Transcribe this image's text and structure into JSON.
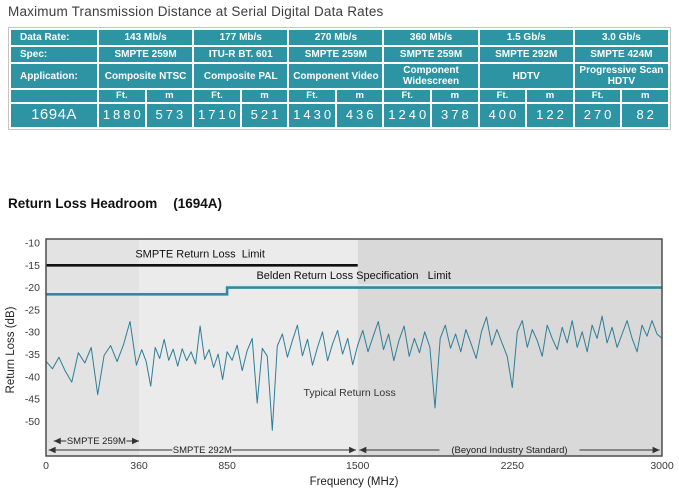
{
  "section_heading": {
    "title": "Return Loss Headroom",
    "suffix": "(1694A)"
  },
  "colors": {
    "table_teal": "#2d94a4",
    "table_text": "#ffffff",
    "trace": "#2e7e97",
    "belden_limit": "#33899f",
    "belden_highlight": "#d8edf3",
    "smpte_limit": "#111111",
    "axis_text": "#3a3a3a",
    "annotation": "#222222"
  },
  "chart_data": [
    {
      "type": "table",
      "title": "Maximum Transmission Distance at Serial Digital Data Rates",
      "row_labels": {
        "data_rate": "Data Rate:",
        "spec": "Spec:",
        "application": "Application:"
      },
      "unit_headers": {
        "ft": "Ft.",
        "m": "m"
      },
      "product": "1694A",
      "columns": [
        {
          "data_rate": "143 Mb/s",
          "spec": "SMPTE 259M",
          "application": "Composite NTSC",
          "ft": "1880",
          "m": "573"
        },
        {
          "data_rate": "177 Mb/s",
          "spec": "ITU-R BT. 601",
          "application": "Composite PAL",
          "ft": "1710",
          "m": "521"
        },
        {
          "data_rate": "270 Mb/s",
          "spec": "SMPTE 259M",
          "application": "Component Video",
          "ft": "1430",
          "m": "436"
        },
        {
          "data_rate": "360 Mb/s",
          "spec": "SMPTE 259M",
          "application": "Component Widescreen",
          "ft": "1240",
          "m": "378"
        },
        {
          "data_rate": "1.5 Gb/s",
          "spec": "SMPTE 292M",
          "application": "HDTV",
          "ft": "400",
          "m": "122"
        },
        {
          "data_rate": "3.0 Gb/s",
          "spec": "SMPTE 424M",
          "application": "Progressive Scan HDTV",
          "ft": "270",
          "m": "82"
        }
      ]
    },
    {
      "type": "line",
      "title": "Return Loss Headroom (1694A)",
      "xlabel": "Frequency (MHz)",
      "ylabel": "Return Loss (dB)",
      "xlim": [
        0,
        3000
      ],
      "ylim": [
        -50,
        -10
      ],
      "x_ticks": [
        0,
        360,
        850,
        1500,
        2250,
        3000
      ],
      "y_ticks": [
        -10,
        -15,
        -20,
        -25,
        -30,
        -35,
        -40,
        -45,
        -50
      ],
      "grid": false,
      "legend": "none",
      "bands": [
        {
          "x_range": [
            0,
            360
          ],
          "color": "#e3e3e3"
        },
        {
          "x_range": [
            360,
            1500
          ],
          "color": "#ebebeb"
        },
        {
          "x_range": [
            1500,
            3000
          ],
          "color": "#d9d9d9"
        }
      ],
      "layout": {
        "x_anchor_fractions": [
          [
            0,
            0
          ],
          [
            360,
            0.151
          ],
          [
            850,
            0.294
          ],
          [
            1500,
            0.506
          ],
          [
            2250,
            0.757
          ],
          [
            3000,
            1
          ]
        ]
      },
      "series": [
        {
          "name": "smpte-limit",
          "label": "SMPTE Return Loss  Limit",
          "value_db": -15,
          "points": [
            [
              0,
              -15
            ],
            [
              1500,
              -15
            ]
          ],
          "label_pos": {
            "x": 700,
            "db": -13.2
          }
        },
        {
          "name": "belden-limit",
          "label": "Belden Return Loss Specification   Limit",
          "points": [
            [
              0,
              -21.5
            ],
            [
              850,
              -21.5
            ],
            [
              850,
              -20
            ],
            [
              3000,
              -20
            ]
          ],
          "label_pos": {
            "x": 1480,
            "db": -18.1
          }
        },
        {
          "name": "typical-return-loss",
          "label": "Typical Return Loss",
          "label_pos": {
            "x": 1460,
            "db": -44.3
          },
          "points": [
            [
              0,
              -36.5
            ],
            [
              25,
              -38.2
            ],
            [
              50,
              -35.6
            ],
            [
              75,
              -38.8
            ],
            [
              100,
              -41.2
            ],
            [
              125,
              -34.6
            ],
            [
              150,
              -36.9
            ],
            [
              175,
              -33.4
            ],
            [
              200,
              -44.0
            ],
            [
              225,
              -35.2
            ],
            [
              250,
              -33.0
            ],
            [
              275,
              -36.6
            ],
            [
              300,
              -32.8
            ],
            [
              325,
              -27.6
            ],
            [
              350,
              -37.4
            ],
            [
              375,
              -33.9
            ],
            [
              400,
              -36.6
            ],
            [
              425,
              -42.1
            ],
            [
              450,
              -33.4
            ],
            [
              475,
              -35.9
            ],
            [
              500,
              -31.6
            ],
            [
              525,
              -36.3
            ],
            [
              550,
              -33.8
            ],
            [
              575,
              -37.6
            ],
            [
              600,
              -33.7
            ],
            [
              625,
              -36.4
            ],
            [
              650,
              -34.4
            ],
            [
              675,
              -37.1
            ],
            [
              700,
              -28.6
            ],
            [
              725,
              -36.1
            ],
            [
              750,
              -33.9
            ],
            [
              775,
              -37.9
            ],
            [
              800,
              -34.9
            ],
            [
              825,
              -40.6
            ],
            [
              850,
              -34.4
            ],
            [
              875,
              -36.3
            ],
            [
              900,
              -32.9
            ],
            [
              925,
              -38.6
            ],
            [
              950,
              -34.1
            ],
            [
              975,
              -31.4
            ],
            [
              1000,
              -45.9
            ],
            [
              1025,
              -33.6
            ],
            [
              1050,
              -35.4
            ],
            [
              1075,
              -52.0
            ],
            [
              1100,
              -33.1
            ],
            [
              1125,
              -30.4
            ],
            [
              1150,
              -35.6
            ],
            [
              1175,
              -31.9
            ],
            [
              1200,
              -28.4
            ],
            [
              1225,
              -35.3
            ],
            [
              1250,
              -31.6
            ],
            [
              1275,
              -37.4
            ],
            [
              1300,
              -33.4
            ],
            [
              1325,
              -29.9
            ],
            [
              1350,
              -36.4
            ],
            [
              1375,
              -32.6
            ],
            [
              1400,
              -29.6
            ],
            [
              1425,
              -34.9
            ],
            [
              1450,
              -31.4
            ],
            [
              1475,
              -37.3
            ],
            [
              1500,
              -32.9
            ],
            [
              1525,
              -29.6
            ],
            [
              1550,
              -34.4
            ],
            [
              1575,
              -30.9
            ],
            [
              1600,
              -27.6
            ],
            [
              1625,
              -33.9
            ],
            [
              1650,
              -30.4
            ],
            [
              1675,
              -36.4
            ],
            [
              1700,
              -31.9
            ],
            [
              1725,
              -28.6
            ],
            [
              1750,
              -35.4
            ],
            [
              1775,
              -31.4
            ],
            [
              1800,
              -34.6
            ],
            [
              1825,
              -29.9
            ],
            [
              1850,
              -33.4
            ],
            [
              1875,
              -47.0
            ],
            [
              1900,
              -31.4
            ],
            [
              1925,
              -28.4
            ],
            [
              1950,
              -33.6
            ],
            [
              1975,
              -30.4
            ],
            [
              2000,
              -34.4
            ],
            [
              2025,
              -29.4
            ],
            [
              2050,
              -32.6
            ],
            [
              2075,
              -35.9
            ],
            [
              2100,
              -29.9
            ],
            [
              2125,
              -26.6
            ],
            [
              2150,
              -32.9
            ],
            [
              2175,
              -29.4
            ],
            [
              2200,
              -32.4
            ],
            [
              2225,
              -35.4
            ],
            [
              2250,
              -42.4
            ],
            [
              2275,
              -29.9
            ],
            [
              2300,
              -27.4
            ],
            [
              2325,
              -33.4
            ],
            [
              2350,
              -29.4
            ],
            [
              2375,
              -31.9
            ],
            [
              2400,
              -35.4
            ],
            [
              2425,
              -28.4
            ],
            [
              2450,
              -31.4
            ],
            [
              2475,
              -33.9
            ],
            [
              2500,
              -28.9
            ],
            [
              2525,
              -32.4
            ],
            [
              2550,
              -27.4
            ],
            [
              2575,
              -33.4
            ],
            [
              2600,
              -29.9
            ],
            [
              2625,
              -34.4
            ],
            [
              2650,
              -28.4
            ],
            [
              2675,
              -31.4
            ],
            [
              2700,
              -26.4
            ],
            [
              2725,
              -32.4
            ],
            [
              2750,
              -28.9
            ],
            [
              2775,
              -33.4
            ],
            [
              2800,
              -30.4
            ],
            [
              2825,
              -27.4
            ],
            [
              2850,
              -31.4
            ],
            [
              2875,
              -34.4
            ],
            [
              2900,
              -28.4
            ],
            [
              2925,
              -30.9
            ],
            [
              2950,
              -27.4
            ],
            [
              2975,
              -30.4
            ],
            [
              3000,
              -31.4
            ]
          ]
        }
      ],
      "range_annotations": [
        {
          "label": "SMPTE 259M",
          "x_range": [
            30,
            360
          ],
          "row": 0
        },
        {
          "label": "SMPTE 292M",
          "x_range": [
            10,
            1492
          ],
          "row": 1
        },
        {
          "label": "(Beyond Industry Standard)",
          "x_range": [
            1508,
            2988
          ],
          "row": 1
        }
      ]
    }
  ]
}
